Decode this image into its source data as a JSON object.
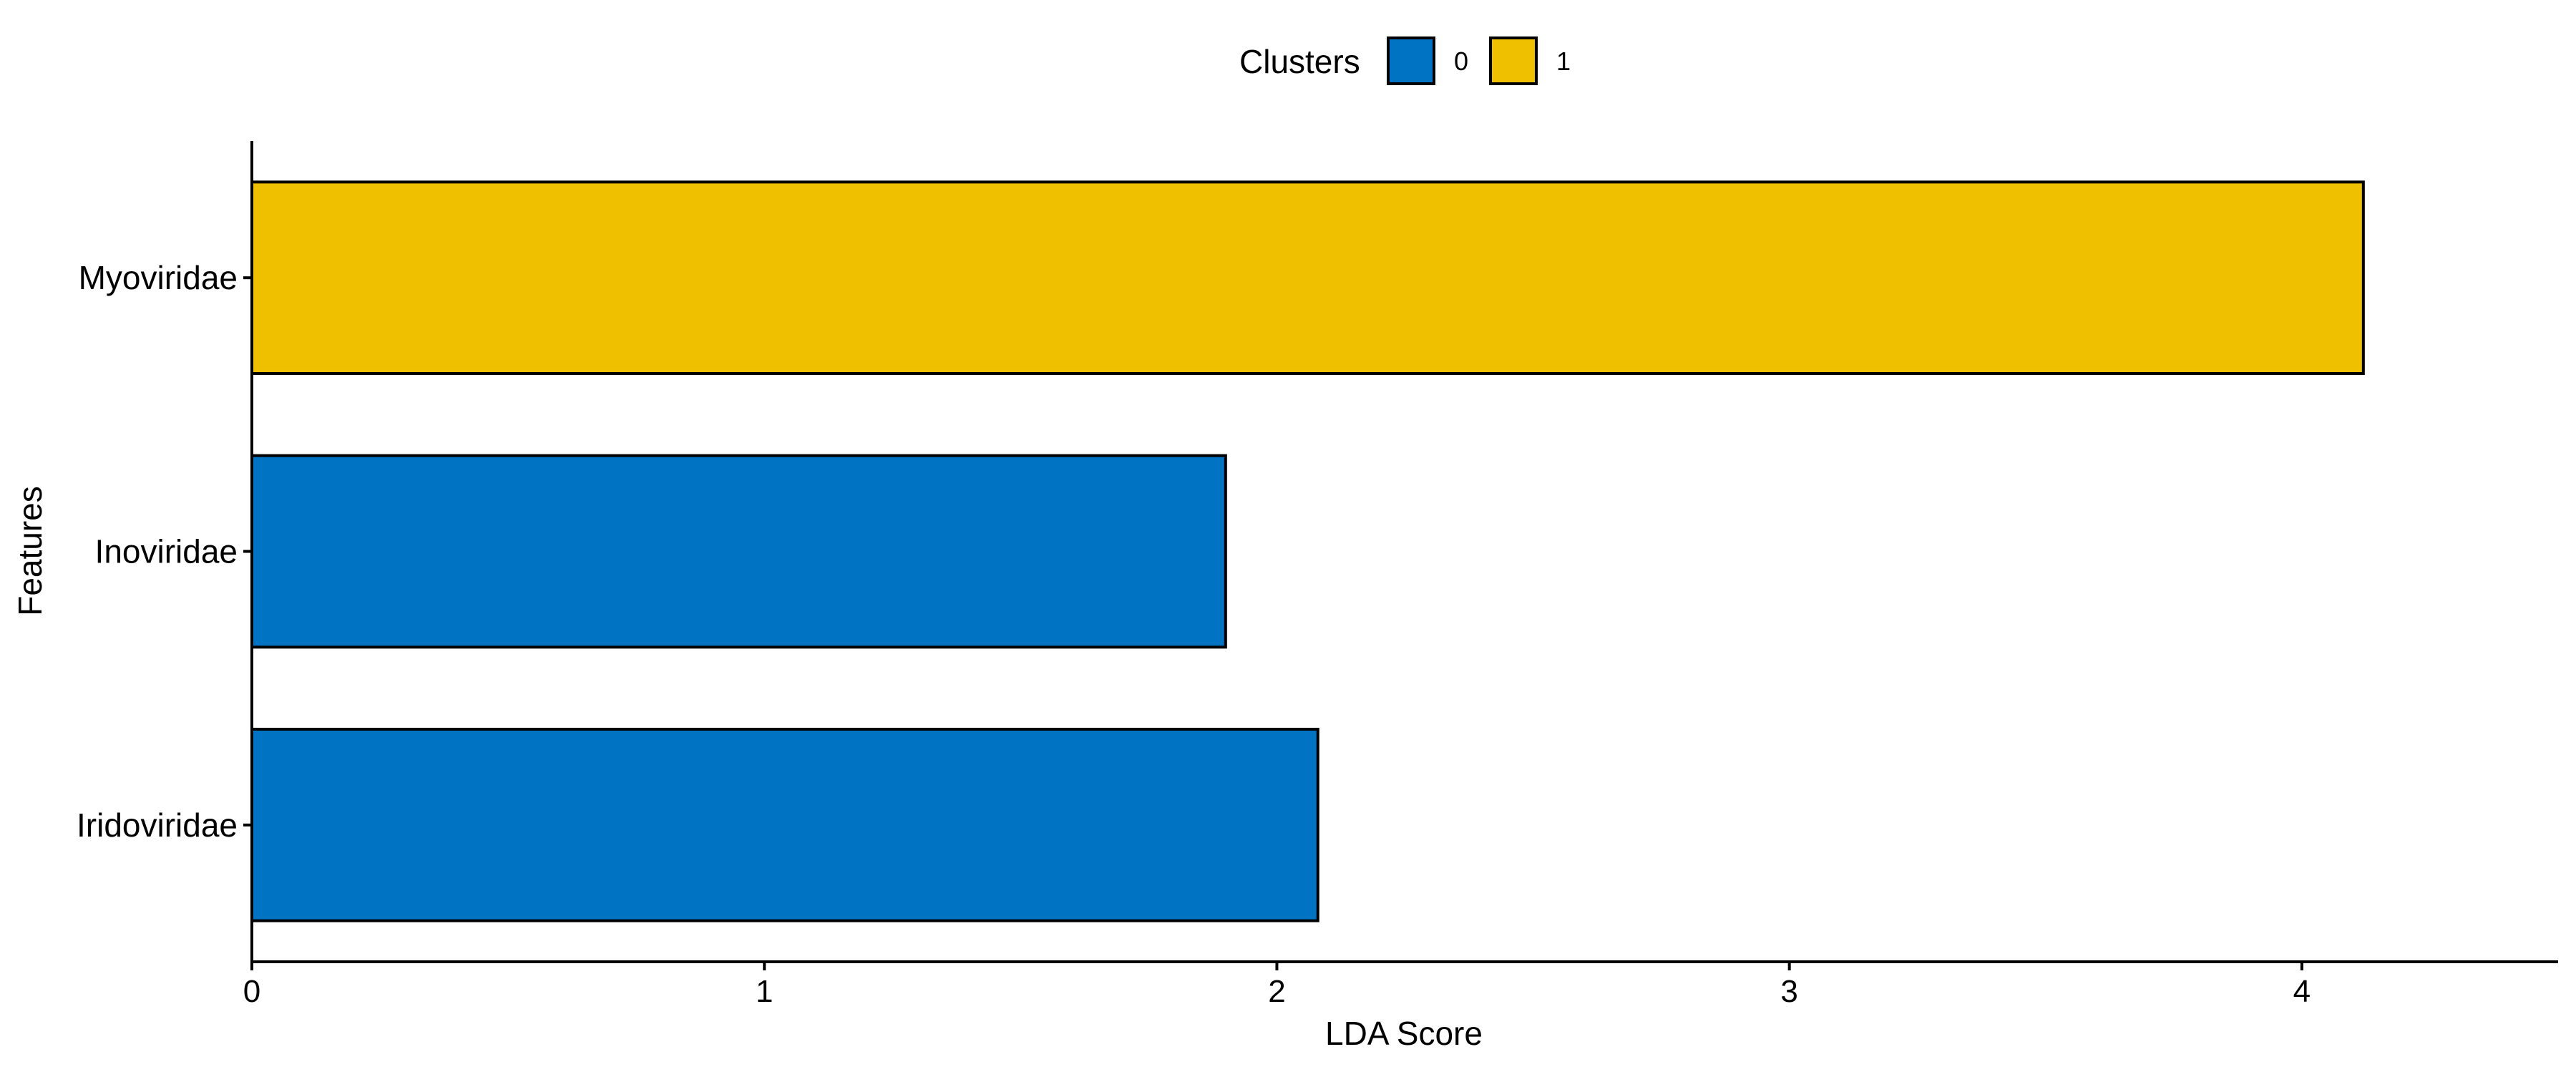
{
  "chart_data": {
    "type": "bar",
    "orientation": "horizontal",
    "xlabel": "LDA Score",
    "ylabel": "Features",
    "xlim": [
      0,
      4.5
    ],
    "xticks": [
      0,
      1,
      2,
      3,
      4
    ],
    "grid": false,
    "legend": {
      "title": "Clusters",
      "position": "top",
      "entries": [
        {
          "label": "0",
          "color": "#0073C2"
        },
        {
          "label": "1",
          "color": "#EFC000"
        }
      ]
    },
    "categories": [
      "Myoviridae",
      "Inoviridae",
      "Iridoviridae"
    ],
    "values": [
      4.12,
      1.9,
      2.08
    ],
    "cluster": [
      "1",
      "0",
      "0"
    ]
  }
}
